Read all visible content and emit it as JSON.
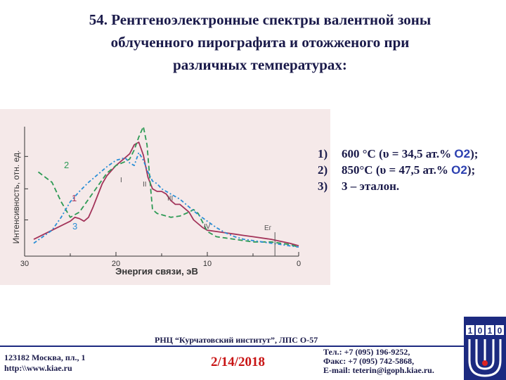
{
  "title": {
    "line1": "54. Рентгеноэлектронные спектры валентной зоны",
    "line2": "облученного пирографита и отожженого при",
    "line3": "различных температурах:"
  },
  "chart_data": {
    "type": "line",
    "xlabel": "Энергия связи, эВ",
    "ylabel": "Интенсивность, отн. ед.",
    "xlim": [
      30,
      0
    ],
    "x_ticks": [
      "30",
      "20",
      "10",
      "0"
    ],
    "curve_labels": [
      "1",
      "2",
      "3"
    ],
    "feature_labels": [
      "I",
      "II",
      "III",
      "IV",
      "Eг"
    ],
    "series": [
      {
        "name": "1",
        "x": [
          29,
          27,
          25,
          24.5,
          24,
          23.5,
          23,
          22.5,
          22,
          21.5,
          21,
          20,
          19,
          18.5,
          18,
          17.5,
          17,
          16.5,
          16,
          15.5,
          15,
          14.5,
          14,
          13.5,
          13,
          12,
          11.5,
          11,
          10.5,
          10,
          9,
          8,
          7,
          6,
          5,
          3,
          1,
          0
        ],
        "y": [
          0.13,
          0.2,
          0.27,
          0.3,
          0.29,
          0.27,
          0.3,
          0.38,
          0.47,
          0.56,
          0.62,
          0.7,
          0.76,
          0.79,
          0.86,
          0.88,
          0.78,
          0.61,
          0.52,
          0.5,
          0.5,
          0.48,
          0.43,
          0.4,
          0.4,
          0.34,
          0.28,
          0.25,
          0.22,
          0.2,
          0.19,
          0.18,
          0.17,
          0.16,
          0.15,
          0.13,
          0.1,
          0.08
        ]
      },
      {
        "name": "2",
        "x": [
          28.5,
          27,
          26,
          25,
          24,
          23,
          22,
          21,
          20,
          19,
          18.5,
          18,
          17.5,
          17,
          16.6,
          16.2,
          16,
          15.5,
          15,
          14,
          13,
          12,
          11.5,
          11,
          10.5,
          10,
          9,
          8,
          7,
          6,
          5,
          3,
          1,
          0
        ],
        "y": [
          0.65,
          0.57,
          0.42,
          0.3,
          0.34,
          0.44,
          0.54,
          0.64,
          0.7,
          0.73,
          0.75,
          0.82,
          0.92,
          1.0,
          0.86,
          0.52,
          0.36,
          0.33,
          0.32,
          0.3,
          0.31,
          0.34,
          0.36,
          0.33,
          0.26,
          0.19,
          0.15,
          0.14,
          0.13,
          0.12,
          0.11,
          0.11,
          0.09,
          0.07
        ]
      },
      {
        "name": "3",
        "x": [
          29,
          28,
          27,
          26,
          25,
          24,
          23,
          22,
          21,
          20,
          19,
          18.5,
          18,
          17.5,
          17,
          16.5,
          16,
          15.5,
          15,
          14,
          13,
          12,
          11,
          10,
          9,
          8,
          7,
          6,
          5,
          4,
          3,
          2,
          1,
          0
        ],
        "y": [
          0.1,
          0.15,
          0.2,
          0.3,
          0.42,
          0.5,
          0.57,
          0.63,
          0.69,
          0.74,
          0.76,
          0.72,
          0.7,
          0.8,
          0.74,
          0.65,
          0.58,
          0.56,
          0.52,
          0.48,
          0.44,
          0.38,
          0.32,
          0.27,
          0.22,
          0.18,
          0.15,
          0.13,
          0.12,
          0.11,
          0.1,
          0.09,
          0.08,
          0.07
        ]
      }
    ]
  },
  "legend": {
    "items": [
      {
        "num": "1)",
        "text": "600 °C (υ = 34,5 ат.% ",
        "sym": "O2",
        "end": ");"
      },
      {
        "num": "2)",
        "text": "850°C (υ = 47,5 ат.% ",
        "sym": "O2",
        "end": ");"
      },
      {
        "num": "3)",
        "text": "3 – эталон.",
        "sym": "",
        "end": ""
      }
    ]
  },
  "footer": {
    "org": "РНЦ “Курчатовский институт”, ЛПС О-57",
    "address_line1": "123182 Москва, пл., 1",
    "address_line2": "http:\\\\www.kiae.ru",
    "date": "2/14/2018",
    "phone": "Тел.: +7 (095) 196-9252,",
    "fax": "Факс: +7 (095) 742-5868,",
    "email": "E-mail: teterin@igoph.kiae.ru.",
    "logo_digits": [
      "1",
      "0",
      "1",
      "0"
    ]
  },
  "colors": {
    "curve1": "#a3345a",
    "curve2": "#2e9a55",
    "curve3": "#2a8ed6",
    "panel_bg": "#f5e9e9",
    "text_dark": "#1a1a4a",
    "date_red": "#c81414"
  }
}
